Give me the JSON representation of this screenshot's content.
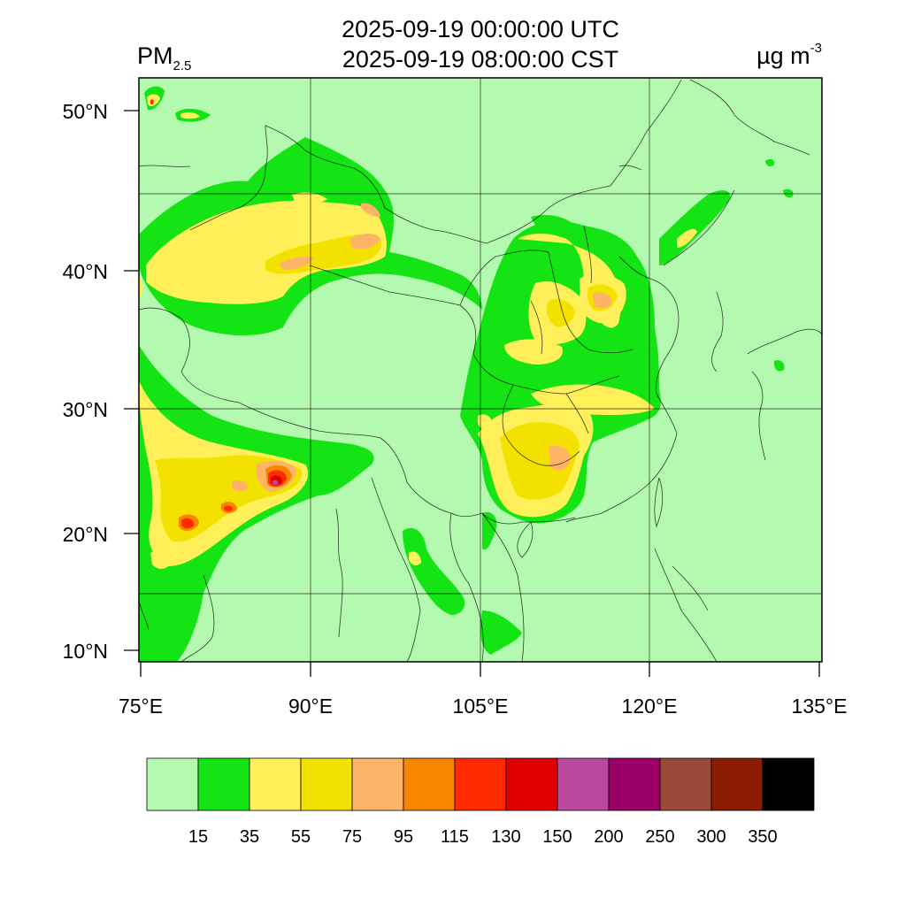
{
  "header": {
    "variable": "PM",
    "variable_sub": "2.5",
    "time_utc": "2025-09-19 00:00:00 UTC",
    "time_local": "2025-09-19 08:00:00 CST",
    "unit_main": "µg m",
    "unit_sup": "-3"
  },
  "axes": {
    "lat_labels": [
      "50°N",
      "40°N",
      "30°N",
      "20°N",
      "10°N"
    ],
    "lon_labels": [
      "75°E",
      "90°E",
      "105°E",
      "120°E",
      "135°E"
    ]
  },
  "colorbar": {
    "colors": [
      "#b4f9b0",
      "#14e314",
      "#fff05a",
      "#f3e100",
      "#fdb467",
      "#f88600",
      "#ff2a00",
      "#e00000",
      "#b94a9e",
      "#9a0068",
      "#9a4a39",
      "#8a1c00",
      "#000000"
    ],
    "labels": [
      "15",
      "35",
      "55",
      "75",
      "95",
      "115",
      "130",
      "150",
      "200",
      "250",
      "300",
      "350"
    ]
  },
  "map": {
    "background_color": "#b4f9b0",
    "level_colors": {
      "green": "#14e314",
      "yellow": "#fff05a",
      "gold": "#f3e100",
      "peach": "#fdb467",
      "orange": "#f88600",
      "red": "#ff2a00",
      "darkred": "#e00000",
      "purple": "#b94a9e"
    }
  }
}
